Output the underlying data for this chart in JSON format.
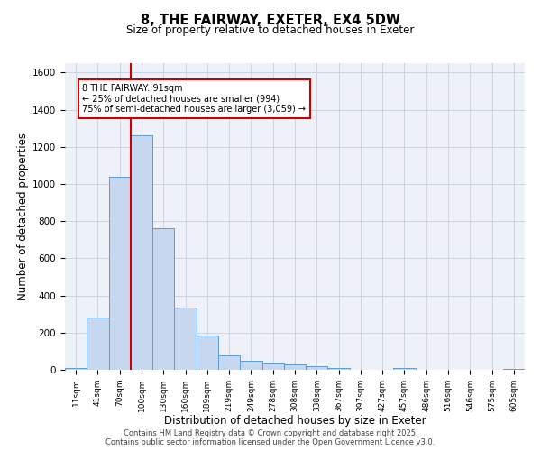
{
  "title1": "8, THE FAIRWAY, EXETER, EX4 5DW",
  "title2": "Size of property relative to detached houses in Exeter",
  "xlabel": "Distribution of detached houses by size in Exeter",
  "ylabel": "Number of detached properties",
  "bar_labels": [
    "11sqm",
    "41sqm",
    "70sqm",
    "100sqm",
    "130sqm",
    "160sqm",
    "189sqm",
    "219sqm",
    "249sqm",
    "278sqm",
    "308sqm",
    "338sqm",
    "367sqm",
    "397sqm",
    "427sqm",
    "457sqm",
    "486sqm",
    "516sqm",
    "546sqm",
    "575sqm",
    "605sqm"
  ],
  "bar_values": [
    10,
    280,
    1040,
    1260,
    760,
    335,
    185,
    80,
    50,
    40,
    28,
    18,
    10,
    2,
    0,
    8,
    0,
    0,
    0,
    0,
    5
  ],
  "bar_color": "#c5d8ef",
  "bar_edge_color": "#5b9bd5",
  "grid_color": "#c8d0dc",
  "bg_color": "#eef2f8",
  "vline_color": "#cc0000",
  "annotation_text": "8 THE FAIRWAY: 91sqm\n← 25% of detached houses are smaller (994)\n75% of semi-detached houses are larger (3,059) →",
  "annotation_box_color": "#ffffff",
  "annotation_box_edge": "#cc0000",
  "ylim": [
    0,
    1650
  ],
  "yticks": [
    0,
    200,
    400,
    600,
    800,
    1000,
    1200,
    1400,
    1600
  ],
  "footer1": "Contains HM Land Registry data © Crown copyright and database right 2025.",
  "footer2": "Contains public sector information licensed under the Open Government Licence v3.0."
}
